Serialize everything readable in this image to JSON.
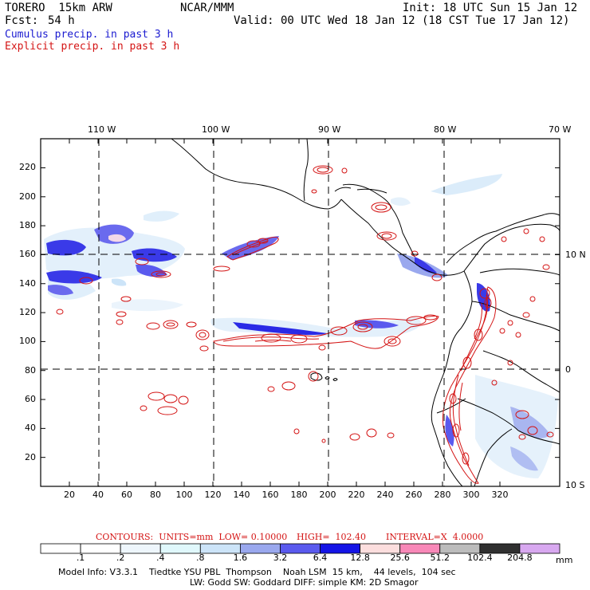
{
  "header": {
    "model": "TORERO  15km ARW",
    "org": "NCAR/MMM",
    "init": "Init: 18 UTC Sun 15 Jan 12",
    "fcst_label": "Fcst:",
    "fcst_value": "54 h",
    "valid": "Valid: 00 UTC Wed 18 Jan 12 (18 CST Tue 17 Jan 12)",
    "cumulus": "Cumulus precip. in past 3 h",
    "explicit": "Explicit precip. in past 3 h"
  },
  "axes": {
    "top_lon_labels": [
      "110 W",
      "100 W",
      "90 W",
      "80 W",
      "70 W"
    ],
    "left_y_labels": [
      "220",
      "200",
      "180",
      "160",
      "140",
      "120",
      "100",
      "80",
      "60",
      "40",
      "20"
    ],
    "bottom_x_labels": [
      "20",
      "40",
      "60",
      "80",
      "100",
      "120",
      "140",
      "160",
      "180",
      "200",
      "220",
      "240",
      "260",
      "280",
      "300",
      "320"
    ],
    "right_lat_labels": [
      "10 N",
      "0",
      "10 S"
    ]
  },
  "contour_info": {
    "contours": "CONTOURS:  UNITS=mm  LOW= 0.10000",
    "high": "HIGH=  102.40",
    "interval": "INTERVAL=X  4.0000"
  },
  "colorbar": {
    "unit": "mm",
    "labels": [
      ".1",
      ".2",
      ".4",
      ".8",
      "1.6",
      "3.2",
      "6.4",
      "12.8",
      "25.6",
      "51.2",
      "102.4",
      "204.8"
    ],
    "colors": [
      "#ffffff",
      "#ffffff",
      "#eef6fc",
      "#e0f8fc",
      "#cce4f8",
      "#9aa8ee",
      "#5a5aee",
      "#1414e6",
      "#fcdede",
      "#f888b8",
      "#bcbcbc",
      "#303030",
      "#d8a8f0"
    ]
  },
  "footer": {
    "line1": "Model Info: V3.3.1    Tiedtke YSU PBL  Thompson    Noah LSM  15 km,    44 levels,  104 sec",
    "line2": "LW: Godd SW: Goddard DIFF: simple KM: 2D Smagor"
  }
}
